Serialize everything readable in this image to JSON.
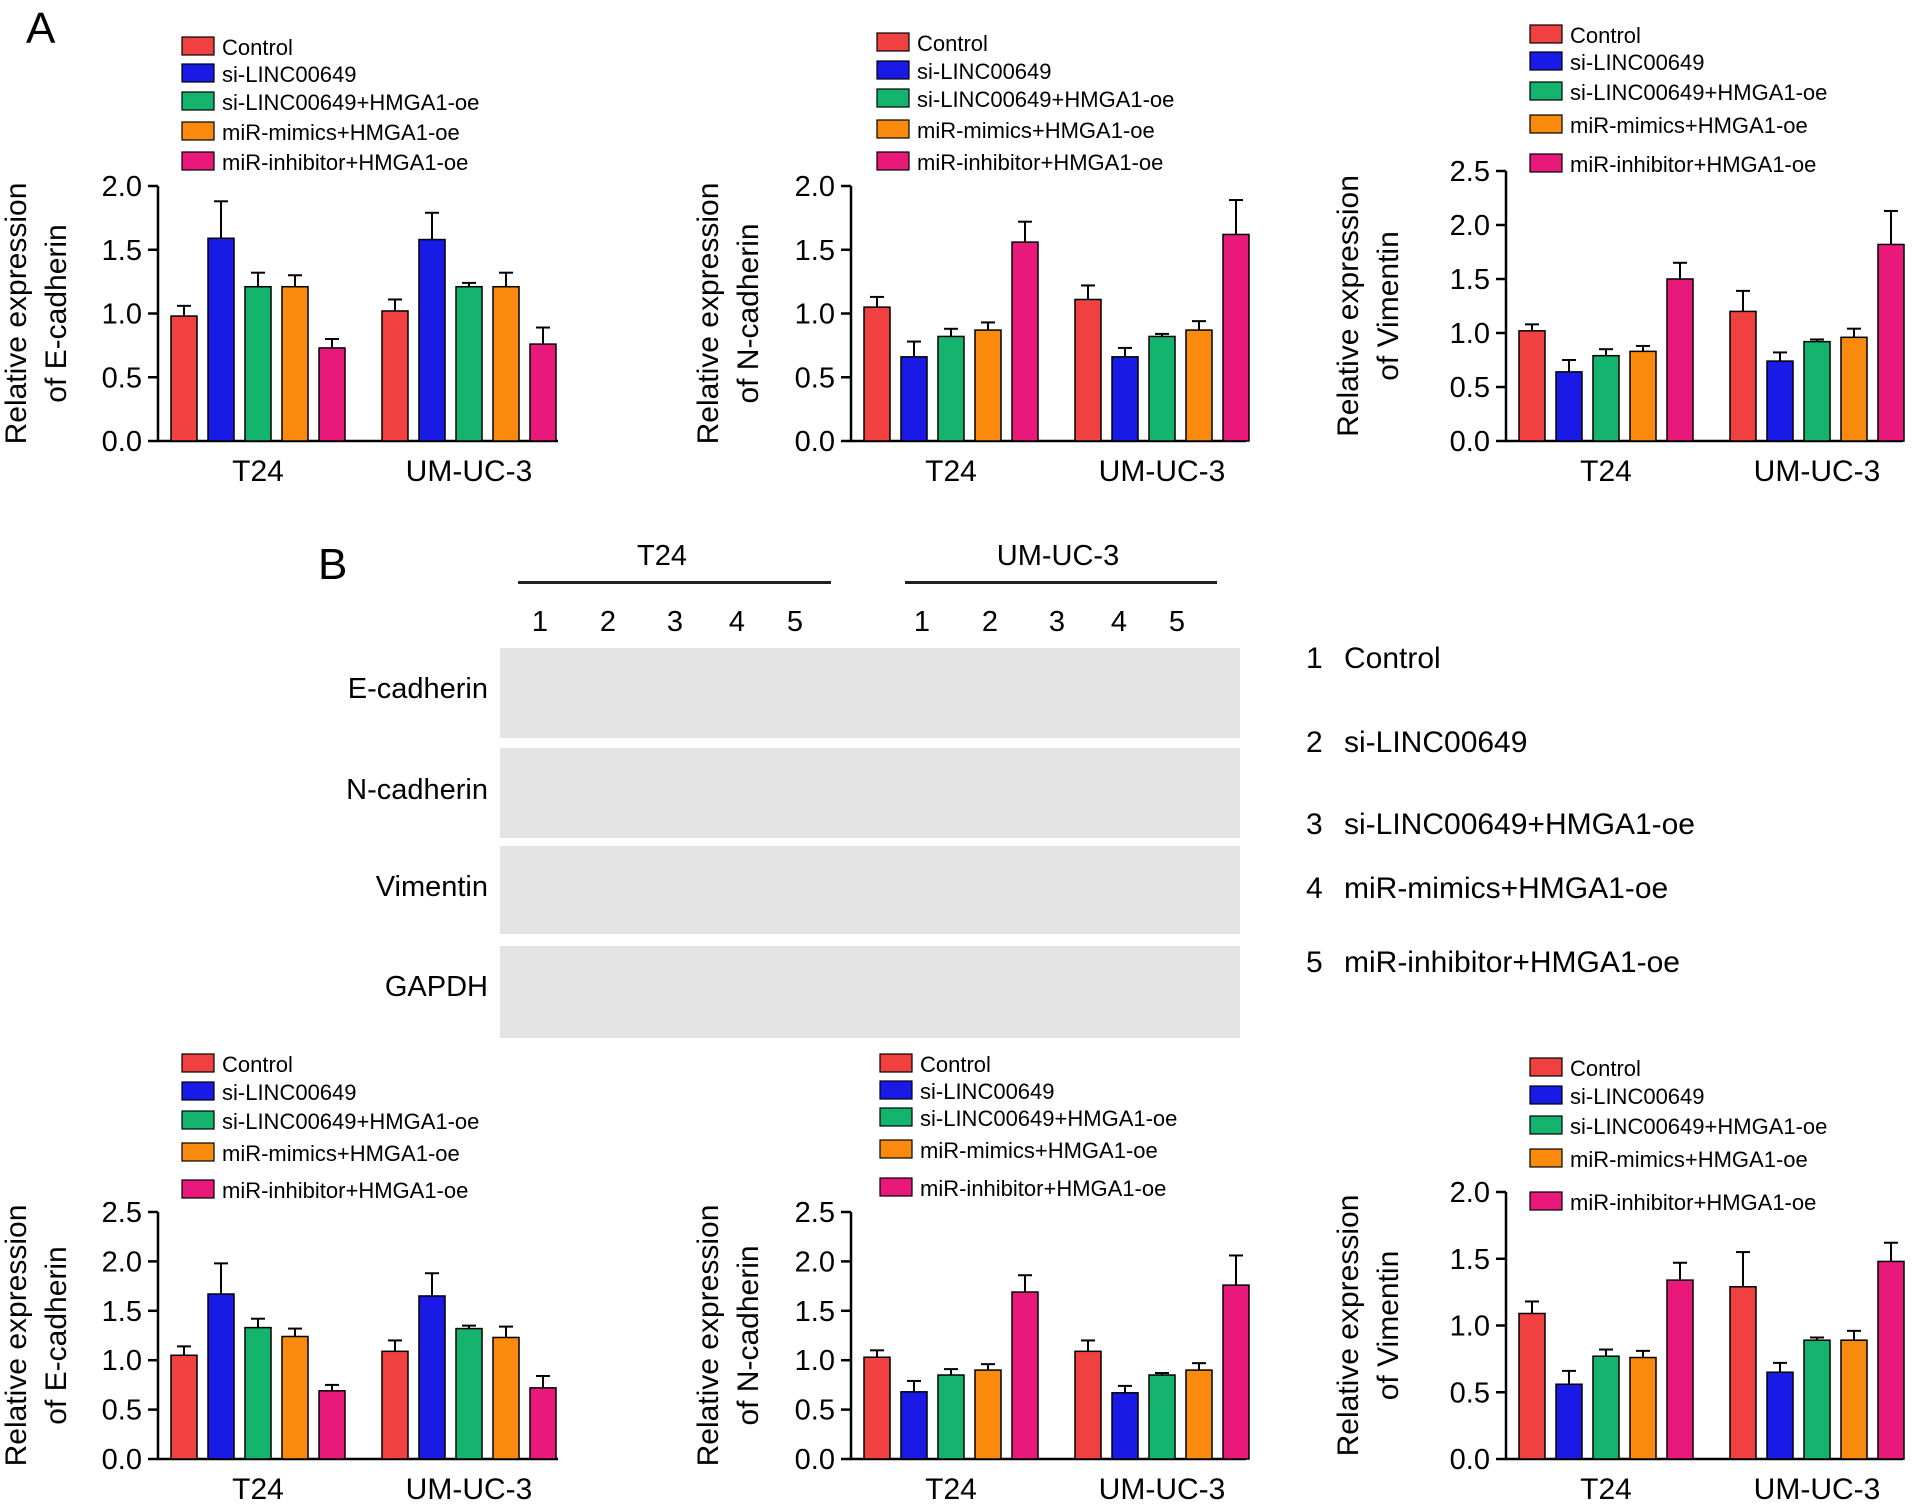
{
  "panels": {
    "a": "A",
    "b": "B"
  },
  "legend_colors": [
    "#f04040",
    "#1a1ae6",
    "#14b46e",
    "#f98a0e",
    "#e8197a"
  ],
  "chart_data": [
    {
      "type": "bar",
      "group": "top",
      "id": "a-ecad",
      "ylabel": [
        "Relative expression",
        "of E-cadherin"
      ],
      "ylim": [
        0,
        2.0
      ],
      "yticks": [
        "0.0",
        "0.5",
        "1.0",
        "1.5",
        "2.0"
      ],
      "tickvals": [
        0,
        0.5,
        1.0,
        1.5,
        2.0
      ],
      "categories": [
        "T24",
        "UM-UC-3"
      ],
      "series": [
        {
          "name": "Control",
          "values": [
            0.98,
            1.02
          ],
          "errors": [
            0.08,
            0.09
          ]
        },
        {
          "name": "si-LINC00649",
          "values": [
            1.59,
            1.58
          ],
          "errors": [
            0.29,
            0.21
          ]
        },
        {
          "name": "si-LINC00649+HMGA1-oe",
          "values": [
            1.21,
            1.21
          ],
          "errors": [
            0.11,
            0.03
          ]
        },
        {
          "name": "miR-mimics+HMGA1-oe",
          "values": [
            1.21,
            1.21
          ],
          "errors": [
            0.09,
            0.11
          ]
        },
        {
          "name": "miR-inhibitor+HMGA1-oe",
          "values": [
            0.73,
            0.76
          ],
          "errors": [
            0.07,
            0.13
          ]
        }
      ]
    },
    {
      "type": "bar",
      "group": "top",
      "id": "a-ncad",
      "ylabel": [
        "Relative expression",
        "of N-cadherin"
      ],
      "ylim": [
        0,
        2.0
      ],
      "yticks": [
        "0.0",
        "0.5",
        "1.0",
        "1.5",
        "2.0"
      ],
      "tickvals": [
        0,
        0.5,
        1.0,
        1.5,
        2.0
      ],
      "categories": [
        "T24",
        "UM-UC-3"
      ],
      "series": [
        {
          "name": "Control",
          "values": [
            1.05,
            1.11
          ],
          "errors": [
            0.08,
            0.11
          ]
        },
        {
          "name": "si-LINC00649",
          "values": [
            0.66,
            0.66
          ],
          "errors": [
            0.12,
            0.07
          ]
        },
        {
          "name": "si-LINC00649+HMGA1-oe",
          "values": [
            0.82,
            0.82
          ],
          "errors": [
            0.06,
            0.02
          ]
        },
        {
          "name": "miR-mimics+HMGA1-oe",
          "values": [
            0.87,
            0.87
          ],
          "errors": [
            0.06,
            0.07
          ]
        },
        {
          "name": "miR-inhibitor+HMGA1-oe",
          "values": [
            1.56,
            1.62
          ],
          "errors": [
            0.16,
            0.27
          ]
        }
      ]
    },
    {
      "type": "bar",
      "group": "top",
      "id": "a-vim",
      "ylabel": [
        "Relative expression",
        "of Vimentin"
      ],
      "ylim": [
        0,
        2.5
      ],
      "yticks": [
        "0.0",
        "0.5",
        "1.0",
        "1.5",
        "2.0",
        "2.5"
      ],
      "tickvals": [
        0,
        0.5,
        1.0,
        1.5,
        2.0,
        2.5
      ],
      "categories": [
        "T24",
        "UM-UC-3"
      ],
      "series": [
        {
          "name": "Control",
          "values": [
            1.02,
            1.2
          ],
          "errors": [
            0.06,
            0.19
          ]
        },
        {
          "name": "si-LINC00649",
          "values": [
            0.64,
            0.74
          ],
          "errors": [
            0.11,
            0.08
          ]
        },
        {
          "name": "si-LINC00649+HMGA1-oe",
          "values": [
            0.79,
            0.92
          ],
          "errors": [
            0.06,
            0.02
          ]
        },
        {
          "name": "miR-mimics+HMGA1-oe",
          "values": [
            0.83,
            0.96
          ],
          "errors": [
            0.05,
            0.08
          ]
        },
        {
          "name": "miR-inhibitor+HMGA1-oe",
          "values": [
            1.5,
            1.82
          ],
          "errors": [
            0.15,
            0.31
          ]
        }
      ]
    },
    {
      "type": "bar",
      "group": "bottom",
      "id": "b-ecad",
      "ylabel": [
        "Relative expression",
        "of E-cadherin"
      ],
      "ylim": [
        0,
        2.5
      ],
      "yticks": [
        "0.0",
        "0.5",
        "1.0",
        "1.5",
        "2.0",
        "2.5"
      ],
      "tickvals": [
        0,
        0.5,
        1.0,
        1.5,
        2.0,
        2.5
      ],
      "categories": [
        "T24",
        "UM-UC-3"
      ],
      "series": [
        {
          "name": "Control",
          "values": [
            1.05,
            1.09
          ],
          "errors": [
            0.09,
            0.11
          ]
        },
        {
          "name": "si-LINC00649",
          "values": [
            1.67,
            1.65
          ],
          "errors": [
            0.31,
            0.23
          ]
        },
        {
          "name": "si-LINC00649+HMGA1-oe",
          "values": [
            1.33,
            1.32
          ],
          "errors": [
            0.09,
            0.03
          ]
        },
        {
          "name": "miR-mimics+HMGA1-oe",
          "values": [
            1.24,
            1.23
          ],
          "errors": [
            0.08,
            0.11
          ]
        },
        {
          "name": "miR-inhibitor+HMGA1-oe",
          "values": [
            0.69,
            0.72
          ],
          "errors": [
            0.06,
            0.12
          ]
        }
      ]
    },
    {
      "type": "bar",
      "group": "bottom",
      "id": "b-ncad",
      "ylabel": [
        "Relative expression",
        "of N-cadherin"
      ],
      "ylim": [
        0,
        2.5
      ],
      "yticks": [
        "0.0",
        "0.5",
        "1.0",
        "1.5",
        "2.0",
        "2.5"
      ],
      "tickvals": [
        0,
        0.5,
        1.0,
        1.5,
        2.0,
        2.5
      ],
      "categories": [
        "T24",
        "UM-UC-3"
      ],
      "series": [
        {
          "name": "Control",
          "values": [
            1.03,
            1.09
          ],
          "errors": [
            0.07,
            0.11
          ]
        },
        {
          "name": "si-LINC00649",
          "values": [
            0.68,
            0.67
          ],
          "errors": [
            0.11,
            0.07
          ]
        },
        {
          "name": "si-LINC00649+HMGA1-oe",
          "values": [
            0.85,
            0.85
          ],
          "errors": [
            0.06,
            0.02
          ]
        },
        {
          "name": "miR-mimics+HMGA1-oe",
          "values": [
            0.9,
            0.9
          ],
          "errors": [
            0.06,
            0.07
          ]
        },
        {
          "name": "miR-inhibitor+HMGA1-oe",
          "values": [
            1.69,
            1.76
          ],
          "errors": [
            0.17,
            0.3
          ]
        }
      ]
    },
    {
      "type": "bar",
      "group": "bottom",
      "id": "b-vim",
      "ylabel": [
        "Relative expression",
        "of Vimentin"
      ],
      "ylim": [
        0,
        2.0
      ],
      "yticks": [
        "0.0",
        "0.5",
        "1.0",
        "1.5",
        "2.0"
      ],
      "tickvals": [
        0,
        0.5,
        1.0,
        1.5,
        2.0
      ],
      "categories": [
        "T24",
        "UM-UC-3"
      ],
      "series": [
        {
          "name": "Control",
          "values": [
            1.09,
            1.29
          ],
          "errors": [
            0.09,
            0.26
          ]
        },
        {
          "name": "si-LINC00649",
          "values": [
            0.56,
            0.65
          ],
          "errors": [
            0.1,
            0.07
          ]
        },
        {
          "name": "si-LINC00649+HMGA1-oe",
          "values": [
            0.77,
            0.89
          ],
          "errors": [
            0.05,
            0.02
          ]
        },
        {
          "name": "miR-mimics+HMGA1-oe",
          "values": [
            0.76,
            0.89
          ],
          "errors": [
            0.05,
            0.07
          ]
        },
        {
          "name": "miR-inhibitor+HMGA1-oe",
          "values": [
            1.34,
            1.48
          ],
          "errors": [
            0.13,
            0.14
          ]
        }
      ]
    }
  ],
  "western_blot": {
    "cell_lines": [
      "T24",
      "UM-UC-3"
    ],
    "lanes": [
      "1",
      "2",
      "3",
      "4",
      "5"
    ],
    "proteins": [
      "E-cadherin",
      "N-cadherin",
      "Vimentin",
      "GAPDH"
    ],
    "key": [
      {
        "num": "1",
        "label": "Control"
      },
      {
        "num": "2",
        "label": "si-LINC00649"
      },
      {
        "num": "3",
        "label": "si-LINC00649+HMGA1-oe"
      },
      {
        "num": "4",
        "label": "miR-mimics+HMGA1-oe"
      },
      {
        "num": "5",
        "label": "miR-inhibitor+HMGA1-oe"
      }
    ]
  }
}
